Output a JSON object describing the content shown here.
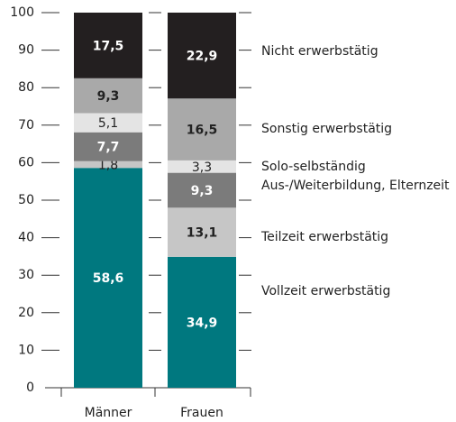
{
  "chart_data": {
    "type": "stacked_bar",
    "categories": [
      "Männer",
      "Frauen"
    ],
    "series": [
      {
        "name": "Vollzeit erwerbstätig",
        "color": "#00787f",
        "values": [
          58.6,
          34.9
        ],
        "value_labels": [
          "58,6",
          "34,9"
        ]
      },
      {
        "name": "Teilzeit erwerbstätig",
        "color": "#c6c6c6",
        "values": [
          1.8,
          13.1
        ],
        "value_labels": [
          "1,8",
          "13,1"
        ]
      },
      {
        "name": "Aus-/Weiterbildung, Elternzeit",
        "color": "#7b7b7b",
        "values": [
          7.7,
          9.3
        ],
        "value_labels": [
          "7,7",
          "9,3"
        ]
      },
      {
        "name": "Solo-selbständig",
        "color": "#e4e4e4",
        "values": [
          5.1,
          3.3
        ],
        "value_labels": [
          "5,1",
          "3,3"
        ]
      },
      {
        "name": "Sonstig erwerbstätig",
        "color": "#a9a9a9",
        "values": [
          9.3,
          16.5
        ],
        "value_labels": [
          "9,3",
          "16,5"
        ]
      },
      {
        "name": "Nicht erwerbstätig",
        "color": "#231f20",
        "values": [
          17.5,
          22.9
        ],
        "value_labels": [
          "17,5",
          "22,9"
        ]
      }
    ],
    "ylim": [
      0,
      100
    ],
    "yticks": [
      0,
      10,
      20,
      30,
      40,
      50,
      60,
      70,
      80,
      90,
      100
    ]
  }
}
